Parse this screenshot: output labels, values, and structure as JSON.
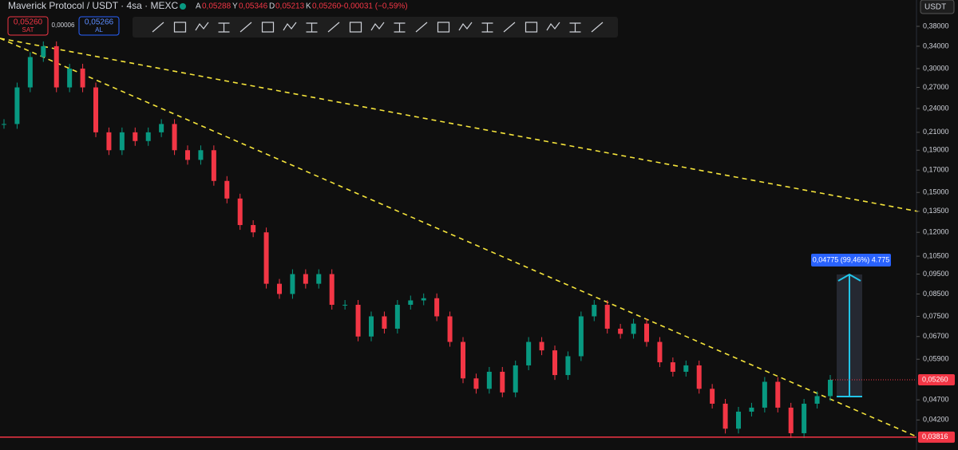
{
  "header": {
    "symbol": "Maverick Protocol / USDT · 4sa · MEXC",
    "ohlc": [
      {
        "key": "A",
        "value": "0,05288"
      },
      {
        "key": "Y",
        "value": "0,05346"
      },
      {
        "key": "D",
        "value": "0,05213"
      },
      {
        "key": "K",
        "value": "0,05260"
      }
    ],
    "change": "−0,00031 (−0,59%)",
    "currency": "USDT"
  },
  "order_panel": {
    "sell_price": "0,05260",
    "sell_label": "SAT",
    "spread": "0,00006",
    "buy_price": "0,05266",
    "buy_label": "AL"
  },
  "price_axis": {
    "scale": "log",
    "ticks": [
      {
        "value": 0.38,
        "label": "0,38000"
      },
      {
        "value": 0.34,
        "label": "0,34000"
      },
      {
        "value": 0.3,
        "label": "0,30000"
      },
      {
        "value": 0.27,
        "label": "0,27000"
      },
      {
        "value": 0.24,
        "label": "0,24000"
      },
      {
        "value": 0.21,
        "label": "0,21000"
      },
      {
        "value": 0.19,
        "label": "0,19000"
      },
      {
        "value": 0.17,
        "label": "0,17000"
      },
      {
        "value": 0.15,
        "label": "0,15000"
      },
      {
        "value": 0.135,
        "label": "0,13500"
      },
      {
        "value": 0.12,
        "label": "0,12000"
      },
      {
        "value": 0.105,
        "label": "0,10500"
      },
      {
        "value": 0.095,
        "label": "0,09500"
      },
      {
        "value": 0.085,
        "label": "0,08500"
      },
      {
        "value": 0.075,
        "label": "0,07500"
      },
      {
        "value": 0.067,
        "label": "0,06700"
      },
      {
        "value": 0.059,
        "label": "0,05900"
      },
      {
        "value": 0.047,
        "label": "0,04700"
      },
      {
        "value": 0.042,
        "label": "0,04200"
      }
    ],
    "current_price": {
      "value": 0.0526,
      "label": "0,05260"
    },
    "support_level": {
      "value": 0.03816,
      "label": "0,03816"
    }
  },
  "measure_label": "0,04775 (99,46%) 4.775",
  "closes": [
    0.22,
    0.27,
    0.32,
    0.34,
    0.27,
    0.3,
    0.27,
    0.21,
    0.19,
    0.21,
    0.2,
    0.21,
    0.22,
    0.19,
    0.18,
    0.19,
    0.16,
    0.145,
    0.125,
    0.12,
    0.09,
    0.085,
    0.095,
    0.09,
    0.095,
    0.08,
    0.08,
    0.067,
    0.075,
    0.07,
    0.08,
    0.082,
    0.083,
    0.075,
    0.065,
    0.053,
    0.05,
    0.055,
    0.049,
    0.057,
    0.065,
    0.062,
    0.054,
    0.06,
    0.075,
    0.08,
    0.07,
    0.068,
    0.072,
    0.065,
    0.058,
    0.055,
    0.057,
    0.05,
    0.046,
    0.04,
    0.044,
    0.045,
    0.052,
    0.045,
    0.039,
    0.046,
    0.048,
    0.0526
  ]
}
